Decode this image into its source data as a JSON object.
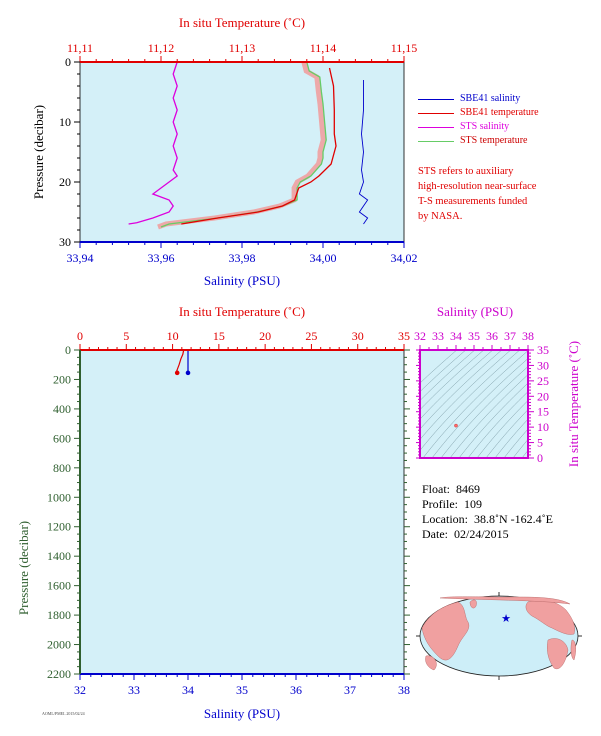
{
  "colors": {
    "plot_bg": "#d4f0f8",
    "temperature": "#e00000",
    "salinity": "#0000cc",
    "sts_salinity": "#dd00dd",
    "sts_temperature": "#66cc66",
    "pressure_axis": "#2f5f2f",
    "ts_axis": "#cc00cc",
    "map_land": "#f0a0a0",
    "map_ocean": "#cdeef8"
  },
  "top_panel": {
    "top_axis_title": "In situ Temperature (˚C)",
    "bottom_axis_title": "Salinity (PSU)",
    "left_axis_title": "Pressure (decibar)",
    "temp_tick_labels": [
      "11,11",
      "11,12",
      "11,13",
      "11,14",
      "11,15"
    ],
    "sal_tick_labels": [
      "33,94",
      "33,96",
      "33,98",
      "34,00",
      "34,02"
    ],
    "pres_tick_labels": [
      "0",
      "10",
      "20",
      "30"
    ]
  },
  "legend": [
    {
      "label": "SBE41 salinity",
      "color": "#0000cc"
    },
    {
      "label": "SBE41 temperature",
      "color": "#e00000"
    },
    {
      "label": "STS salinity",
      "color": "#dd00dd"
    },
    {
      "label": "STS temperature",
      "color": "#66cc66"
    }
  ],
  "note_lines": [
    "STS refers to auxiliary",
    "high-resolution near-surface",
    "T-S measurements funded",
    "by NASA."
  ],
  "bottom_panel": {
    "top_axis_title": "In situ Temperature (˚C)",
    "bottom_axis_title": "Salinity (PSU)",
    "left_axis_title": "Pressure (decibar)",
    "temp_tick_labels": [
      "0",
      "5",
      "10",
      "15",
      "20",
      "25",
      "30",
      "35"
    ],
    "sal_tick_labels": [
      "32",
      "33",
      "34",
      "35",
      "36",
      "37",
      "38"
    ],
    "pres_tick_labels": [
      "0",
      "200",
      "400",
      "600",
      "800",
      "1000",
      "1200",
      "1400",
      "1600",
      "1800",
      "2000",
      "2200"
    ]
  },
  "ts_panel": {
    "top_axis_title": "Salinity (PSU)",
    "right_axis_title": "In situ Temperature (˚C)",
    "sal_tick_labels": [
      "32",
      "33",
      "34",
      "35",
      "36",
      "37",
      "38"
    ],
    "temp_tick_labels": [
      "0",
      "5",
      "10",
      "15",
      "20",
      "25",
      "30",
      "35"
    ]
  },
  "info": {
    "float_label": "Float:",
    "float_value": "8469",
    "profile_label": "Profile:",
    "profile_value": "109",
    "location_label": "Location:",
    "location_value": "38.8˚N  -162.4˚E",
    "date_label": "Date:",
    "date_value": "02/24/2015"
  },
  "footer_code": "AOML/PMEL 2015/02/24",
  "chart_data": [
    {
      "type": "line",
      "title": "",
      "x_top_label": "In situ Temperature (˚C)",
      "x_top_range": [
        11.11,
        11.15
      ],
      "xlabel": "Salinity (PSU)",
      "x_range": [
        33.94,
        34.02
      ],
      "ylabel": "Pressure (decibar)",
      "y_range": [
        0,
        30
      ],
      "y_inverted": true,
      "series": [
        {
          "name": "SBE41 salinity",
          "axis": "salinity",
          "points": [
            [
              34.01,
              3
            ],
            [
              34.01,
              8
            ],
            [
              34.0095,
              12
            ],
            [
              34.01,
              15
            ],
            [
              34.0095,
              18
            ],
            [
              34.01,
              20
            ],
            [
              34.009,
              22
            ],
            [
              34.011,
              23
            ],
            [
              34.01,
              24
            ],
            [
              34.009,
              25
            ],
            [
              34.011,
              26
            ],
            [
              34.01,
              27
            ]
          ]
        },
        {
          "name": "SBE41 temperature",
          "axis": "temperature",
          "points": [
            [
              11.1408,
              1
            ],
            [
              11.1413,
              4
            ],
            [
              11.1414,
              8
            ],
            [
              11.1414,
              12
            ],
            [
              11.1416,
              14
            ],
            [
              11.141,
              17
            ],
            [
              11.1395,
              19
            ],
            [
              11.1385,
              20
            ],
            [
              11.137,
              21
            ],
            [
              11.1365,
              23
            ],
            [
              11.135,
              24
            ],
            [
              11.132,
              25
            ],
            [
              11.127,
              26
            ],
            [
              11.1225,
              27
            ]
          ]
        },
        {
          "name": "STS salinity",
          "axis": "salinity",
          "points": [
            [
              33.964,
              0
            ],
            [
              33.963,
              2
            ],
            [
              33.964,
              4
            ],
            [
              33.963,
              6
            ],
            [
              33.964,
              8
            ],
            [
              33.963,
              10
            ],
            [
              33.964,
              12
            ],
            [
              33.963,
              14
            ],
            [
              33.964,
              16
            ],
            [
              33.963,
              18
            ],
            [
              33.964,
              19
            ],
            [
              33.962,
              20
            ],
            [
              33.96,
              21
            ],
            [
              33.958,
              22
            ],
            [
              33.962,
              23
            ],
            [
              33.963,
              24
            ],
            [
              33.962,
              25
            ],
            [
              33.958,
              26
            ],
            [
              33.954,
              26.8
            ],
            [
              33.952,
              27
            ]
          ]
        },
        {
          "name": "STS temperature",
          "axis": "temperature",
          "points": [
            [
              11.138,
              0
            ],
            [
              11.1383,
              1.5
            ],
            [
              11.1396,
              2.5
            ],
            [
              11.1398,
              5
            ],
            [
              11.14,
              7
            ],
            [
              11.1402,
              10
            ],
            [
              11.1404,
              13
            ],
            [
              11.14,
              15
            ],
            [
              11.14,
              16
            ],
            [
              11.1398,
              17
            ],
            [
              11.1385,
              19
            ],
            [
              11.1372,
              20
            ],
            [
              11.1368,
              21
            ],
            [
              11.1368,
              23
            ],
            [
              11.135,
              24
            ],
            [
              11.1318,
              25
            ],
            [
              11.127,
              26
            ],
            [
              11.121,
              27
            ],
            [
              11.12,
              27.5
            ]
          ]
        }
      ]
    },
    {
      "type": "line",
      "title": "",
      "x_top_label": "In situ Temperature (˚C)",
      "x_top_range": [
        0,
        35
      ],
      "xlabel": "Salinity (PSU)",
      "x_range": [
        32,
        38
      ],
      "ylabel": "Pressure (decibar)",
      "y_range": [
        0,
        2200
      ],
      "y_inverted": true,
      "series": [
        {
          "name": "SBE41 salinity",
          "axis": "salinity",
          "points": [
            [
              34.0,
              0
            ],
            [
              34.0,
              50
            ],
            [
              34.0,
              100
            ],
            [
              34.0,
              150
            ]
          ]
        },
        {
          "name": "SBE41 temperature",
          "axis": "temperature",
          "points": [
            [
              11.2,
              0
            ],
            [
              11.1,
              30
            ],
            [
              10.9,
              60
            ],
            [
              10.7,
              100
            ],
            [
              10.4,
              150
            ]
          ]
        }
      ],
      "markers": [
        {
          "salinity": 34.0,
          "pressure": 155
        },
        {
          "temperature": 10.5,
          "pressure": 155
        }
      ]
    },
    {
      "type": "scatter",
      "title": "",
      "xlabel": "Salinity (PSU)",
      "x_range": [
        32,
        38
      ],
      "ylabel": "In situ Temperature (˚C)",
      "y_range": [
        0,
        35
      ],
      "points": [
        {
          "salinity": 34.0,
          "temperature": 10.5
        }
      ]
    }
  ]
}
